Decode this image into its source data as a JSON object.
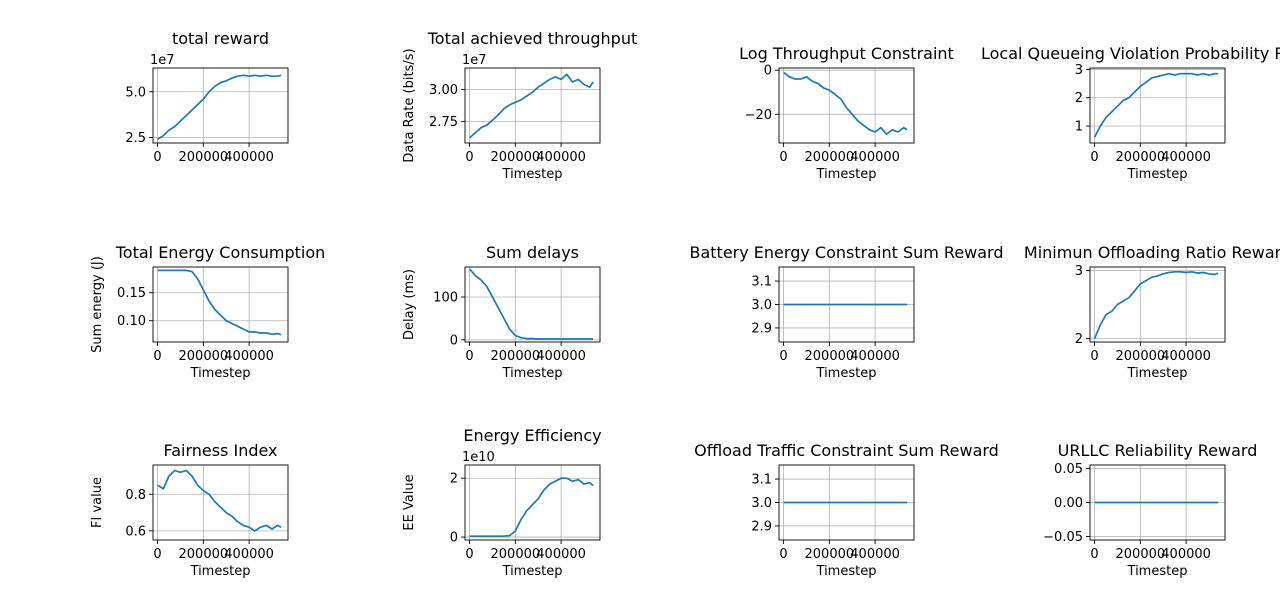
{
  "line_color": "#1f77b4",
  "chart_data": [
    {
      "type": "line",
      "title": "total reward",
      "xlabel": "",
      "ylabel": "",
      "y_offset_label": "1e7",
      "xlim": [
        -20000,
        570000
      ],
      "ylim": [
        2.2,
        6.3
      ],
      "xticks": [
        0,
        200000,
        400000
      ],
      "xtick_labels": [
        "0",
        "200000",
        "400000"
      ],
      "yticks": [
        2.5,
        5.0
      ],
      "ytick_labels": [
        "2.5",
        "5.0"
      ],
      "grid": true,
      "series": [
        {
          "x": [
            0,
            25000,
            50000,
            75000,
            100000,
            125000,
            150000,
            175000,
            200000,
            225000,
            250000,
            275000,
            300000,
            325000,
            350000,
            375000,
            400000,
            425000,
            450000,
            475000,
            500000,
            525000,
            540000
          ],
          "y": [
            2.4,
            2.6,
            2.9,
            3.1,
            3.4,
            3.7,
            4.0,
            4.3,
            4.6,
            5.0,
            5.3,
            5.5,
            5.6,
            5.75,
            5.85,
            5.9,
            5.85,
            5.9,
            5.85,
            5.9,
            5.85,
            5.85,
            5.9
          ]
        }
      ]
    },
    {
      "type": "line",
      "title": "Total achieved throughput",
      "xlabel": "Timestep",
      "ylabel": "Data Rate (bits/s)",
      "y_offset_label": "1e7",
      "xlim": [
        -20000,
        570000
      ],
      "ylim": [
        2.58,
        3.17
      ],
      "xticks": [
        0,
        200000,
        400000
      ],
      "xtick_labels": [
        "0",
        "200000",
        "400000"
      ],
      "yticks": [
        2.75,
        3.0
      ],
      "ytick_labels": [
        "2.75",
        "3.00"
      ],
      "grid": true,
      "series": [
        {
          "x": [
            0,
            25000,
            50000,
            75000,
            100000,
            125000,
            150000,
            175000,
            200000,
            225000,
            250000,
            275000,
            300000,
            325000,
            350000,
            375000,
            400000,
            425000,
            450000,
            475000,
            500000,
            525000,
            540000
          ],
          "y": [
            2.62,
            2.66,
            2.7,
            2.72,
            2.76,
            2.8,
            2.85,
            2.88,
            2.9,
            2.92,
            2.95,
            2.98,
            3.02,
            3.05,
            3.08,
            3.1,
            3.08,
            3.12,
            3.06,
            3.08,
            3.04,
            3.02,
            3.06
          ]
        }
      ]
    },
    {
      "type": "line",
      "title": "Log Throughput Constraint",
      "xlabel": "Timestep",
      "ylabel": "",
      "xlim": [
        -20000,
        570000
      ],
      "ylim": [
        -33,
        1
      ],
      "xticks": [
        0,
        200000,
        400000
      ],
      "xtick_labels": [
        "0",
        "200000",
        "400000"
      ],
      "yticks": [
        0,
        -20
      ],
      "ytick_labels": [
        "0",
        "−20"
      ],
      "grid": true,
      "series": [
        {
          "x": [
            0,
            25000,
            50000,
            75000,
            100000,
            125000,
            150000,
            175000,
            200000,
            225000,
            250000,
            275000,
            300000,
            325000,
            350000,
            375000,
            400000,
            425000,
            450000,
            475000,
            500000,
            525000,
            540000
          ],
          "y": [
            -1,
            -3,
            -4,
            -4,
            -3,
            -5,
            -6,
            -8,
            -9,
            -11,
            -13,
            -17,
            -20,
            -23,
            -25,
            -27,
            -28,
            -26,
            -29,
            -27,
            -28,
            -26,
            -27
          ]
        }
      ]
    },
    {
      "type": "line",
      "title": "Local Queueing Violation Probability Reward",
      "xlabel": "Timestep",
      "ylabel": "",
      "xlim": [
        -20000,
        570000
      ],
      "ylim": [
        0.4,
        3.05
      ],
      "xticks": [
        0,
        200000,
        400000
      ],
      "xtick_labels": [
        "0",
        "200000",
        "400000"
      ],
      "yticks": [
        1,
        2,
        3
      ],
      "ytick_labels": [
        "1",
        "2",
        "3"
      ],
      "grid": true,
      "series": [
        {
          "x": [
            0,
            25000,
            50000,
            75000,
            100000,
            125000,
            150000,
            175000,
            200000,
            225000,
            250000,
            275000,
            300000,
            325000,
            350000,
            375000,
            400000,
            425000,
            450000,
            475000,
            500000,
            525000,
            540000
          ],
          "y": [
            0.6,
            1.0,
            1.3,
            1.5,
            1.7,
            1.9,
            2.0,
            2.2,
            2.4,
            2.55,
            2.7,
            2.75,
            2.8,
            2.85,
            2.8,
            2.85,
            2.85,
            2.85,
            2.8,
            2.85,
            2.8,
            2.85,
            2.85
          ]
        }
      ]
    },
    {
      "type": "line",
      "title": "Total Energy Consumption",
      "xlabel": "Timestep",
      "ylabel": "Sum energy (J)",
      "xlim": [
        -20000,
        570000
      ],
      "ylim": [
        0.062,
        0.196
      ],
      "xticks": [
        0,
        200000,
        400000
      ],
      "xtick_labels": [
        "0",
        "200000",
        "400000"
      ],
      "yticks": [
        0.1,
        0.15
      ],
      "ytick_labels": [
        "0.10",
        "0.15"
      ],
      "grid": true,
      "series": [
        {
          "x": [
            0,
            25000,
            50000,
            75000,
            100000,
            125000,
            150000,
            175000,
            200000,
            225000,
            250000,
            275000,
            300000,
            325000,
            350000,
            375000,
            400000,
            425000,
            450000,
            475000,
            500000,
            525000,
            540000
          ],
          "y": [
            0.19,
            0.19,
            0.19,
            0.19,
            0.19,
            0.19,
            0.188,
            0.175,
            0.155,
            0.135,
            0.12,
            0.11,
            0.1,
            0.095,
            0.09,
            0.085,
            0.08,
            0.08,
            0.078,
            0.078,
            0.076,
            0.077,
            0.075
          ]
        }
      ]
    },
    {
      "type": "line",
      "title": "Sum delays",
      "xlabel": "Timestep",
      "ylabel": "Delay (ms)",
      "xlim": [
        -20000,
        570000
      ],
      "ylim": [
        -5,
        170
      ],
      "xticks": [
        0,
        200000,
        400000
      ],
      "xtick_labels": [
        "0",
        "200000",
        "400000"
      ],
      "yticks": [
        0,
        100
      ],
      "ytick_labels": [
        "0",
        "100"
      ],
      "grid": true,
      "series": [
        {
          "x": [
            0,
            25000,
            50000,
            75000,
            100000,
            125000,
            150000,
            175000,
            200000,
            225000,
            250000,
            275000,
            300000,
            325000,
            350000,
            375000,
            400000,
            425000,
            450000,
            475000,
            500000,
            525000,
            540000
          ],
          "y": [
            165,
            150,
            140,
            125,
            100,
            75,
            50,
            25,
            10,
            5,
            3,
            3,
            2,
            2,
            2,
            2,
            2,
            2,
            2,
            2,
            2,
            2,
            2
          ]
        }
      ]
    },
    {
      "type": "line",
      "title": "Battery Energy Constraint Sum Reward",
      "xlabel": "Timestep",
      "ylabel": "",
      "xlim": [
        -20000,
        570000
      ],
      "ylim": [
        2.84,
        3.16
      ],
      "xticks": [
        0,
        200000,
        400000
      ],
      "xtick_labels": [
        "0",
        "200000",
        "400000"
      ],
      "yticks": [
        2.9,
        3.0,
        3.1
      ],
      "ytick_labels": [
        "2.9",
        "3.0",
        "3.1"
      ],
      "grid": true,
      "series": [
        {
          "x": [
            0,
            540000
          ],
          "y": [
            3.0,
            3.0
          ]
        }
      ]
    },
    {
      "type": "line",
      "title": "Minimun Offloading Ratio Reward",
      "xlabel": "Timestep",
      "ylabel": "",
      "xlim": [
        -20000,
        570000
      ],
      "ylim": [
        1.95,
        3.05
      ],
      "xticks": [
        0,
        200000,
        400000
      ],
      "xtick_labels": [
        "0",
        "200000",
        "400000"
      ],
      "yticks": [
        2,
        3
      ],
      "ytick_labels": [
        "2",
        "3"
      ],
      "grid": true,
      "series": [
        {
          "x": [
            0,
            25000,
            50000,
            75000,
            100000,
            125000,
            150000,
            175000,
            200000,
            225000,
            250000,
            275000,
            300000,
            325000,
            350000,
            375000,
            400000,
            425000,
            450000,
            475000,
            500000,
            525000,
            540000
          ],
          "y": [
            2.0,
            2.2,
            2.35,
            2.4,
            2.5,
            2.55,
            2.6,
            2.7,
            2.8,
            2.85,
            2.9,
            2.92,
            2.95,
            2.97,
            2.98,
            2.98,
            2.97,
            2.98,
            2.96,
            2.97,
            2.95,
            2.94,
            2.96
          ]
        }
      ]
    },
    {
      "type": "line",
      "title": "Fairness Index",
      "xlabel": "Timestep",
      "ylabel": "FI value",
      "xlim": [
        -20000,
        570000
      ],
      "ylim": [
        0.55,
        0.96
      ],
      "xticks": [
        0,
        200000,
        400000
      ],
      "xtick_labels": [
        "0",
        "200000",
        "400000"
      ],
      "yticks": [
        0.6,
        0.8
      ],
      "ytick_labels": [
        "0.6",
        "0.8"
      ],
      "grid": true,
      "series": [
        {
          "x": [
            0,
            25000,
            50000,
            75000,
            100000,
            125000,
            150000,
            175000,
            200000,
            225000,
            250000,
            275000,
            300000,
            325000,
            350000,
            375000,
            400000,
            425000,
            450000,
            475000,
            500000,
            525000,
            540000
          ],
          "y": [
            0.85,
            0.83,
            0.9,
            0.93,
            0.92,
            0.93,
            0.9,
            0.85,
            0.82,
            0.8,
            0.76,
            0.73,
            0.7,
            0.68,
            0.65,
            0.63,
            0.62,
            0.6,
            0.62,
            0.63,
            0.61,
            0.63,
            0.62
          ]
        }
      ]
    },
    {
      "type": "line",
      "title": "Energy Efficiency",
      "xlabel": "Timestep",
      "ylabel": "EE Value",
      "y_offset_label": "1e10",
      "xlim": [
        -20000,
        570000
      ],
      "ylim": [
        -0.1,
        2.45
      ],
      "xticks": [
        0,
        200000,
        400000
      ],
      "xtick_labels": [
        "0",
        "200000",
        "400000"
      ],
      "yticks": [
        0,
        2
      ],
      "ytick_labels": [
        "0",
        "2"
      ],
      "grid": true,
      "series": [
        {
          "x": [
            0,
            25000,
            50000,
            75000,
            100000,
            125000,
            150000,
            175000,
            200000,
            225000,
            250000,
            275000,
            300000,
            325000,
            350000,
            375000,
            400000,
            425000,
            450000,
            475000,
            500000,
            525000,
            540000
          ],
          "y": [
            0.03,
            0.03,
            0.03,
            0.03,
            0.03,
            0.03,
            0.03,
            0.05,
            0.2,
            0.6,
            0.9,
            1.1,
            1.3,
            1.6,
            1.8,
            1.9,
            2.0,
            2.0,
            1.9,
            1.95,
            1.8,
            1.85,
            1.75
          ]
        }
      ]
    },
    {
      "type": "line",
      "title": "Offload Traffic Constraint Sum Reward",
      "xlabel": "Timestep",
      "ylabel": "",
      "xlim": [
        -20000,
        570000
      ],
      "ylim": [
        2.84,
        3.16
      ],
      "xticks": [
        0,
        200000,
        400000
      ],
      "xtick_labels": [
        "0",
        "200000",
        "400000"
      ],
      "yticks": [
        2.9,
        3.0,
        3.1
      ],
      "ytick_labels": [
        "2.9",
        "3.0",
        "3.1"
      ],
      "grid": true,
      "series": [
        {
          "x": [
            0,
            540000
          ],
          "y": [
            3.0,
            3.0
          ]
        }
      ]
    },
    {
      "type": "line",
      "title": "URLLC Reliability Reward",
      "xlabel": "Timestep",
      "ylabel": "",
      "xlim": [
        -20000,
        570000
      ],
      "ylim": [
        -0.055,
        0.055
      ],
      "xticks": [
        0,
        200000,
        400000
      ],
      "xtick_labels": [
        "0",
        "200000",
        "400000"
      ],
      "yticks": [
        -0.05,
        0.0,
        0.05
      ],
      "ytick_labels": [
        "−0.05",
        "0.00",
        "0.05"
      ],
      "grid": true,
      "series": [
        {
          "x": [
            0,
            540000
          ],
          "y": [
            0.0,
            0.0
          ]
        }
      ]
    }
  ]
}
